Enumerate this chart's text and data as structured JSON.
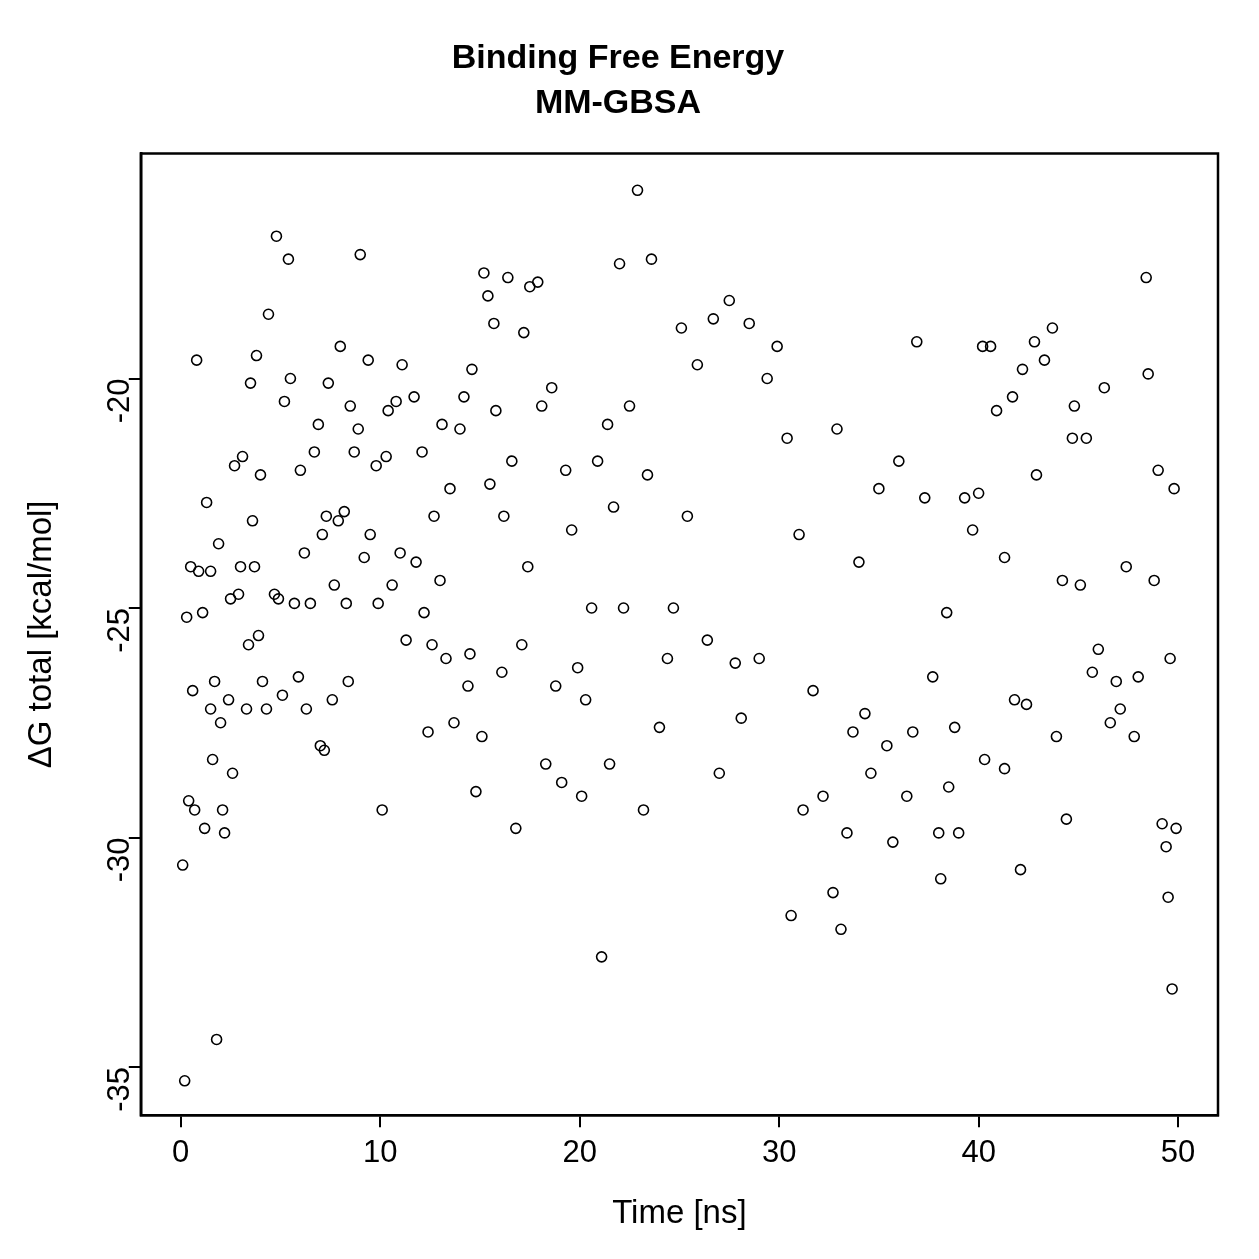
{
  "chart_data": {
    "type": "scatter",
    "title": "Binding Free Energy",
    "subtitle": "MM-GBSA",
    "xlabel": "Time [ns]",
    "ylabel": "ΔG total [kcal/mol]",
    "xlim": [
      -2,
      52
    ],
    "ylim": [
      -36.05,
      -15.1
    ],
    "xticks": [
      0,
      10,
      20,
      30,
      40,
      50
    ],
    "yticks": [
      -35,
      -30,
      -25,
      -20
    ],
    "marker": "circle",
    "series": [
      {
        "color": "#000000",
        "x": [
          0.1,
          0.2,
          0.3,
          0.4,
          0.5,
          0.6,
          0.7,
          0.8,
          0.9,
          1.1,
          1.2,
          1.3,
          1.5,
          1.5,
          1.6,
          1.7,
          1.8,
          1.9,
          2.0,
          2.1,
          2.2,
          2.4,
          2.5,
          2.6,
          2.7,
          2.9,
          3.0,
          3.1,
          3.3,
          3.4,
          3.5,
          3.6,
          3.7,
          3.8,
          3.9,
          4.0,
          4.1,
          4.3,
          4.4,
          4.7,
          4.8,
          4.9,
          5.1,
          5.2,
          5.4,
          5.5,
          5.7,
          5.9,
          6.0,
          6.2,
          6.3,
          6.5,
          6.7,
          6.9,
          7.0,
          7.1,
          7.2,
          7.3,
          7.4,
          7.6,
          7.7,
          7.9,
          8.0,
          8.2,
          8.3,
          8.4,
          8.5,
          8.7,
          8.9,
          9.0,
          9.2,
          9.4,
          9.5,
          9.8,
          9.9,
          10.1,
          10.3,
          10.4,
          10.6,
          10.8,
          11.0,
          11.1,
          11.3,
          11.7,
          11.8,
          12.1,
          12.2,
          12.4,
          12.6,
          12.7,
          13.0,
          13.1,
          13.3,
          13.5,
          13.7,
          14.0,
          14.2,
          14.4,
          14.5,
          14.6,
          14.8,
          15.1,
          15.2,
          15.4,
          15.5,
          15.7,
          15.8,
          16.1,
          16.2,
          16.4,
          16.6,
          16.8,
          17.1,
          17.2,
          17.4,
          17.5,
          17.9,
          18.1,
          18.3,
          18.6,
          18.8,
          19.1,
          19.3,
          19.6,
          19.9,
          20.1,
          20.3,
          20.6,
          20.9,
          21.1,
          21.4,
          21.5,
          21.7,
          22.0,
          22.2,
          22.5,
          22.9,
          23.2,
          23.4,
          23.6,
          24.0,
          24.4,
          24.7,
          25.1,
          25.4,
          25.9,
          26.4,
          26.7,
          27.0,
          27.5,
          27.8,
          28.1,
          28.5,
          29.0,
          29.4,
          29.9,
          30.4,
          30.6,
          31.0,
          31.2,
          31.7,
          32.2,
          32.7,
          32.9,
          33.1,
          33.4,
          33.7,
          34.0,
          34.3,
          34.6,
          35.0,
          35.4,
          35.7,
          36.0,
          36.4,
          36.7,
          36.9,
          37.3,
          37.7,
          38.0,
          38.1,
          38.4,
          38.5,
          38.8,
          39.0,
          39.3,
          39.7,
          40.0,
          40.2,
          40.3,
          40.6,
          40.9,
          41.3,
          41.3,
          41.7,
          41.8,
          42.1,
          42.2,
          42.4,
          42.8,
          42.9,
          43.3,
          43.7,
          43.9,
          44.2,
          44.4,
          44.7,
          44.8,
          45.1,
          45.4,
          45.7,
          46.0,
          46.3,
          46.6,
          46.9,
          47.1,
          47.4,
          47.8,
          48.0,
          48.4,
          48.5,
          48.8,
          49.0,
          49.2,
          49.4,
          49.5,
          49.6,
          49.7,
          49.8,
          49.9
        ],
        "values": [
          -30.6,
          -35.3,
          -25.2,
          -29.2,
          -24.1,
          -26.8,
          -29.4,
          -19.6,
          -24.2,
          -25.1,
          -29.8,
          -22.7,
          -24.2,
          -27.2,
          -28.3,
          -26.6,
          -34.4,
          -23.6,
          -27.5,
          -29.4,
          -29.9,
          -27.0,
          -24.8,
          -28.6,
          -21.9,
          -24.7,
          -24.1,
          -21.7,
          -27.2,
          -25.8,
          -20.1,
          -23.1,
          -24.1,
          -19.5,
          -25.6,
          -22.1,
          -26.6,
          -27.2,
          -18.6,
          -24.7,
          -16.9,
          -24.8,
          -26.9,
          -20.5,
          -17.4,
          -20.0,
          -24.9,
          -26.5,
          -22.0,
          -23.8,
          -27.2,
          -24.9,
          -21.6,
          -21.0,
          -28.0,
          -23.4,
          -28.1,
          -23.0,
          -20.1,
          -27.0,
          -24.5,
          -23.1,
          -19.3,
          -22.9,
          -24.9,
          -26.6,
          -20.6,
          -21.6,
          -21.1,
          -17.3,
          -23.9,
          -19.6,
          -23.4,
          -21.9,
          -24.9,
          -29.4,
          -21.7,
          -20.7,
          -24.5,
          -20.5,
          -23.8,
          -19.7,
          -25.7,
          -20.4,
          -24.0,
          -21.6,
          -25.1,
          -27.7,
          -25.8,
          -23.0,
          -24.4,
          -21.0,
          -26.1,
          -22.4,
          -27.5,
          -21.1,
          -20.4,
          -26.7,
          -26.0,
          -19.8,
          -29.0,
          -27.8,
          -17.7,
          -18.2,
          -22.3,
          -18.8,
          -20.7,
          -26.4,
          -23.0,
          -17.8,
          -21.8,
          -29.8,
          -25.8,
          -19.0,
          -24.1,
          -18.0,
          -17.9,
          -20.6,
          -28.4,
          -20.2,
          -26.7,
          -28.8,
          -22.0,
          -23.3,
          -26.3,
          -29.1,
          -27.0,
          -25.0,
          -21.8,
          -32.6,
          -21.0,
          -28.4,
          -22.8,
          -17.5,
          -25.0,
          -20.6,
          -15.9,
          -29.4,
          -22.1,
          -17.4,
          -27.6,
          -26.1,
          -25.0,
          -18.9,
          -23.0,
          -19.7,
          -25.7,
          -18.7,
          -28.6,
          -18.3,
          -26.2,
          -27.4,
          -18.8,
          -26.1,
          -20.0,
          -19.3,
          -21.3,
          -31.7,
          -23.4,
          -29.4,
          -26.8,
          -29.1,
          -31.2,
          -21.1,
          -32.0,
          -29.9,
          -27.7,
          -24.0,
          -27.3,
          -28.6,
          -22.4,
          -28.0,
          -30.1,
          -21.8,
          -29.1,
          -27.7,
          -19.2,
          -22.6,
          -26.5,
          -29.9,
          -30.9,
          -25.1,
          -28.9,
          -27.6,
          -29.9,
          -22.6,
          -23.3,
          -22.5,
          -19.3,
          -28.3,
          -19.3,
          -20.7,
          -23.9,
          -28.5,
          -20.4,
          -27.0,
          -30.7,
          -19.8,
          -27.1,
          -19.2,
          -22.1,
          -19.6,
          -18.9,
          -27.8,
          -24.4,
          -29.6,
          -21.3,
          -20.6,
          -24.5,
          -21.3,
          -26.4,
          -25.9,
          -20.2,
          -27.5,
          -26.6,
          -27.2,
          -24.1,
          -27.8,
          -26.5,
          -17.8,
          -19.9,
          -24.4,
          -22.0,
          -29.7,
          -30.2,
          -31.3,
          -26.1,
          -33.3,
          -22.4,
          -29.8
        ]
      }
    ]
  }
}
